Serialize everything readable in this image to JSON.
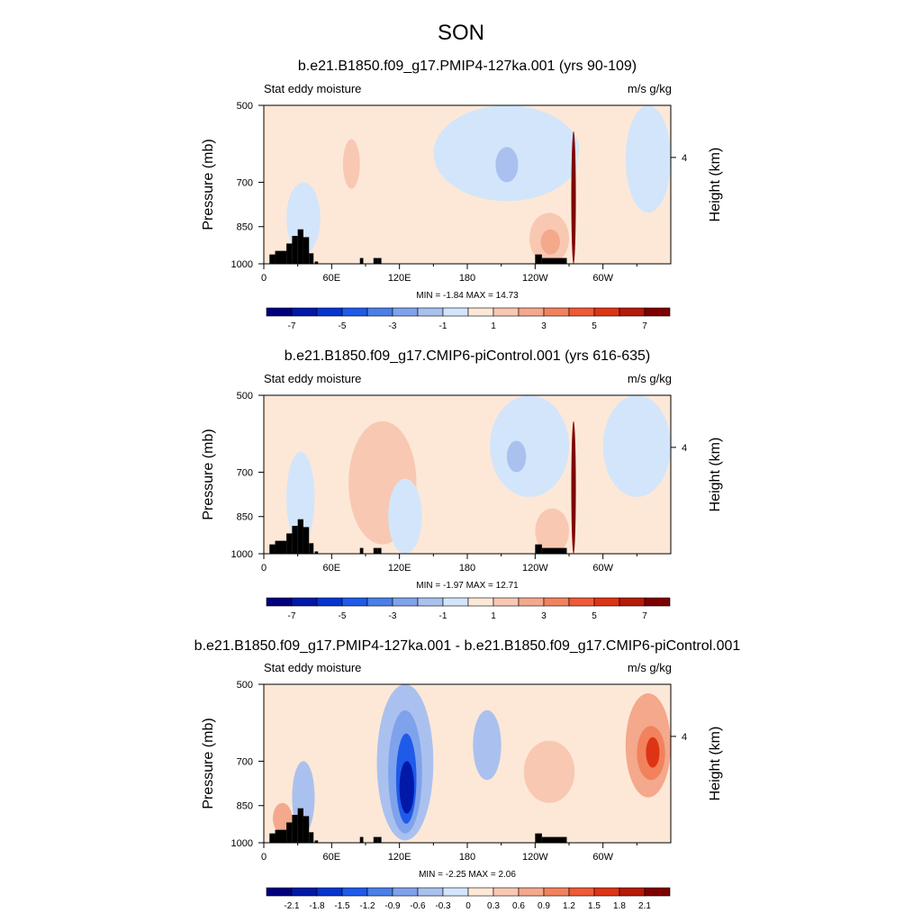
{
  "figure": {
    "title": "SON",
    "panels": [
      {
        "title": "b.e21.B1850.f09_g17.PMIP4-127ka.001 (yrs 90-109)",
        "left_label": "Stat eddy moisture",
        "right_label": "m/s g/kg",
        "stats_text": "MIN =  -1.84  MAX =  14.73"
      },
      {
        "title": "b.e21.B1850.f09_g17.CMIP6-piControl.001 (yrs 616-635)",
        "left_label": "Stat eddy moisture",
        "right_label": "m/s g/kg",
        "stats_text": "MIN =  -1.97  MAX =  12.71"
      },
      {
        "title": "b.e21.B1850.f09_g17.PMIP4-127ka.001 - b.e21.B1850.f09_g17.CMIP6-piControl.001",
        "left_label": "Stat eddy moisture",
        "right_label": "m/s g/kg",
        "stats_text": "MIN =  -2.25  MAX =  2.06"
      }
    ]
  },
  "chart_data": [
    {
      "type": "heatmap",
      "title": "b.e21.B1850.f09_g17.PMIP4-127ka.001 (yrs 90-109)",
      "ylabel": "Pressure (mb)",
      "ylabel_right": "Height (km)",
      "x_ticks": [
        "0",
        "60E",
        "120E",
        "180",
        "120W",
        "60W"
      ],
      "x_tick_values": [
        0,
        60,
        120,
        180,
        240,
        300
      ],
      "xlim": [
        0,
        360
      ],
      "y_ticks": [
        "500",
        "700",
        "850",
        "1000"
      ],
      "y_tick_values": [
        500,
        700,
        850,
        1000
      ],
      "ylim": [
        1000,
        500
      ],
      "y_scale": "log",
      "right_ticks": [
        "4"
      ],
      "right_tick_pressure": [
        628
      ],
      "min": -1.84,
      "max": 14.73,
      "colorbar_labels": [
        "-7",
        "-5",
        "-3",
        "-1",
        "1",
        "3",
        "5",
        "7"
      ],
      "colorbar_levels": [
        -8,
        -7,
        -6,
        -5,
        -4,
        -3,
        -2,
        -1,
        0,
        1,
        2,
        3,
        4,
        5,
        6,
        7,
        8
      ],
      "colorbar_colors": [
        "#00007f",
        "#0019a8",
        "#0535d0",
        "#1f5ae9",
        "#4a7fe9",
        "#7fa2ec",
        "#aac1ef",
        "#d3e5fa",
        "#fde8d7",
        "#f8c8b2",
        "#f4a88c",
        "#f2825d",
        "#f05a36",
        "#dd3415",
        "#b51b08",
        "#7f0000"
      ],
      "features": [
        {
          "lon": [
            20,
            50
          ],
          "p": [
            700,
            960
          ],
          "v": -0.4
        },
        {
          "lon": [
            55,
            125
          ],
          "p": [
            560,
            990
          ],
          "v": 0.6
        },
        {
          "lon": [
            70,
            85
          ],
          "p": [
            580,
            720
          ],
          "v": 1.6
        },
        {
          "lon": [
            95,
            125
          ],
          "p": [
            700,
            1000
          ],
          "v": 0.5
        },
        {
          "lon": [
            150,
            280
          ],
          "p": [
            500,
            760
          ],
          "v": -0.6
        },
        {
          "lon": [
            205,
            225
          ],
          "p": [
            600,
            700
          ],
          "v": -1.5
        },
        {
          "lon": [
            235,
            270
          ],
          "p": [
            800,
            1000
          ],
          "v": 1.5
        },
        {
          "lon": [
            245,
            262
          ],
          "p": [
            860,
            960
          ],
          "v": 2.5
        },
        {
          "lon": [
            272,
            276
          ],
          "p": [
            560,
            1000
          ],
          "v": 7.5
        },
        {
          "lon": [
            276,
            320
          ],
          "p": [
            520,
            960
          ],
          "v": 0.6
        },
        {
          "lon": [
            320,
            360
          ],
          "p": [
            500,
            800
          ],
          "v": -0.4
        }
      ]
    },
    {
      "type": "heatmap",
      "title": "b.e21.B1850.f09_g17.CMIP6-piControl.001 (yrs 616-635)",
      "ylabel": "Pressure (mb)",
      "ylabel_right": "Height (km)",
      "x_ticks": [
        "0",
        "60E",
        "120E",
        "180",
        "120W",
        "60W"
      ],
      "x_tick_values": [
        0,
        60,
        120,
        180,
        240,
        300
      ],
      "xlim": [
        0,
        360
      ],
      "y_ticks": [
        "500",
        "700",
        "850",
        "1000"
      ],
      "y_tick_values": [
        500,
        700,
        850,
        1000
      ],
      "ylim": [
        1000,
        500
      ],
      "y_scale": "log",
      "right_ticks": [
        "4"
      ],
      "right_tick_pressure": [
        628
      ],
      "min": -1.97,
      "max": 12.71,
      "colorbar_labels": [
        "-7",
        "-5",
        "-3",
        "-1",
        "1",
        "3",
        "5",
        "7"
      ],
      "colorbar_levels": [
        -8,
        -7,
        -6,
        -5,
        -4,
        -3,
        -2,
        -1,
        0,
        1,
        2,
        3,
        4,
        5,
        6,
        7,
        8
      ],
      "colorbar_colors": [
        "#00007f",
        "#0019a8",
        "#0535d0",
        "#1f5ae9",
        "#4a7fe9",
        "#7fa2ec",
        "#aac1ef",
        "#d3e5fa",
        "#fde8d7",
        "#f8c8b2",
        "#f4a88c",
        "#f2825d",
        "#f05a36",
        "#dd3415",
        "#b51b08",
        "#7f0000"
      ],
      "features": [
        {
          "lon": [
            20,
            45
          ],
          "p": [
            640,
            960
          ],
          "v": -0.4
        },
        {
          "lon": [
            75,
            135
          ],
          "p": [
            560,
            960
          ],
          "v": 1.4
        },
        {
          "lon": [
            110,
            140
          ],
          "p": [
            720,
            1000
          ],
          "v": -0.4
        },
        {
          "lon": [
            200,
            270
          ],
          "p": [
            500,
            780
          ],
          "v": -0.6
        },
        {
          "lon": [
            215,
            232
          ],
          "p": [
            610,
            700
          ],
          "v": -1.5
        },
        {
          "lon": [
            240,
            270
          ],
          "p": [
            820,
            1000
          ],
          "v": 1.5
        },
        {
          "lon": [
            272,
            276
          ],
          "p": [
            560,
            1000
          ],
          "v": 7.5
        },
        {
          "lon": [
            300,
            360
          ],
          "p": [
            500,
            780
          ],
          "v": -0.4
        }
      ]
    },
    {
      "type": "heatmap",
      "title": "b.e21.B1850.f09_g17.PMIP4-127ka.001 - b.e21.B1850.f09_g17.CMIP6-piControl.001",
      "ylabel": "Pressure (mb)",
      "ylabel_right": "Height (km)",
      "x_ticks": [
        "0",
        "60E",
        "120E",
        "180",
        "120W",
        "60W"
      ],
      "x_tick_values": [
        0,
        60,
        120,
        180,
        240,
        300
      ],
      "xlim": [
        0,
        360
      ],
      "y_ticks": [
        "500",
        "700",
        "850",
        "1000"
      ],
      "y_tick_values": [
        500,
        700,
        850,
        1000
      ],
      "ylim": [
        1000,
        500
      ],
      "y_scale": "log",
      "right_ticks": [
        "4"
      ],
      "right_tick_pressure": [
        628
      ],
      "min": -2.25,
      "max": 2.06,
      "colorbar_labels": [
        "-2.1",
        "-1.8",
        "-1.5",
        "-1.2",
        "-0.9",
        "-0.6",
        "-0.3",
        "0",
        "0.3",
        "0.6",
        "0.9",
        "1.2",
        "1.5",
        "1.8",
        "2.1"
      ],
      "colorbar_levels": [
        -2.4,
        -2.1,
        -1.8,
        -1.5,
        -1.2,
        -0.9,
        -0.6,
        -0.3,
        0,
        0.3,
        0.6,
        0.9,
        1.2,
        1.5,
        1.8,
        2.1,
        2.4
      ],
      "colorbar_colors": [
        "#00007f",
        "#0019a8",
        "#0535d0",
        "#1f5ae9",
        "#4a7fe9",
        "#7fa2ec",
        "#aac1ef",
        "#d3e5fa",
        "#fde8d7",
        "#f8c8b2",
        "#f4a88c",
        "#f2825d",
        "#f05a36",
        "#dd3415",
        "#b51b08",
        "#7f0000"
      ],
      "features": [
        {
          "lon": [
            100,
            150
          ],
          "p": [
            500,
            990
          ],
          "v": -0.4
        },
        {
          "lon": [
            110,
            140
          ],
          "p": [
            560,
            960
          ],
          "v": -0.8
        },
        {
          "lon": [
            117,
            135
          ],
          "p": [
            620,
            920
          ],
          "v": -1.3
        },
        {
          "lon": [
            120,
            133
          ],
          "p": [
            700,
            880
          ],
          "v": -1.9
        },
        {
          "lon": [
            185,
            210
          ],
          "p": [
            560,
            760
          ],
          "v": -0.4
        },
        {
          "lon": [
            230,
            275
          ],
          "p": [
            640,
            840
          ],
          "v": 0.4
        },
        {
          "lon": [
            320,
            360
          ],
          "p": [
            520,
            820
          ],
          "v": 0.6
        },
        {
          "lon": [
            330,
            355
          ],
          "p": [
            600,
            760
          ],
          "v": 1.0
        },
        {
          "lon": [
            338,
            350
          ],
          "p": [
            630,
            720
          ],
          "v": 1.6
        },
        {
          "lon": [
            8,
            25
          ],
          "p": [
            840,
            960
          ],
          "v": 0.6
        },
        {
          "lon": [
            25,
            45
          ],
          "p": [
            700,
            960
          ],
          "v": -0.5
        }
      ]
    }
  ]
}
